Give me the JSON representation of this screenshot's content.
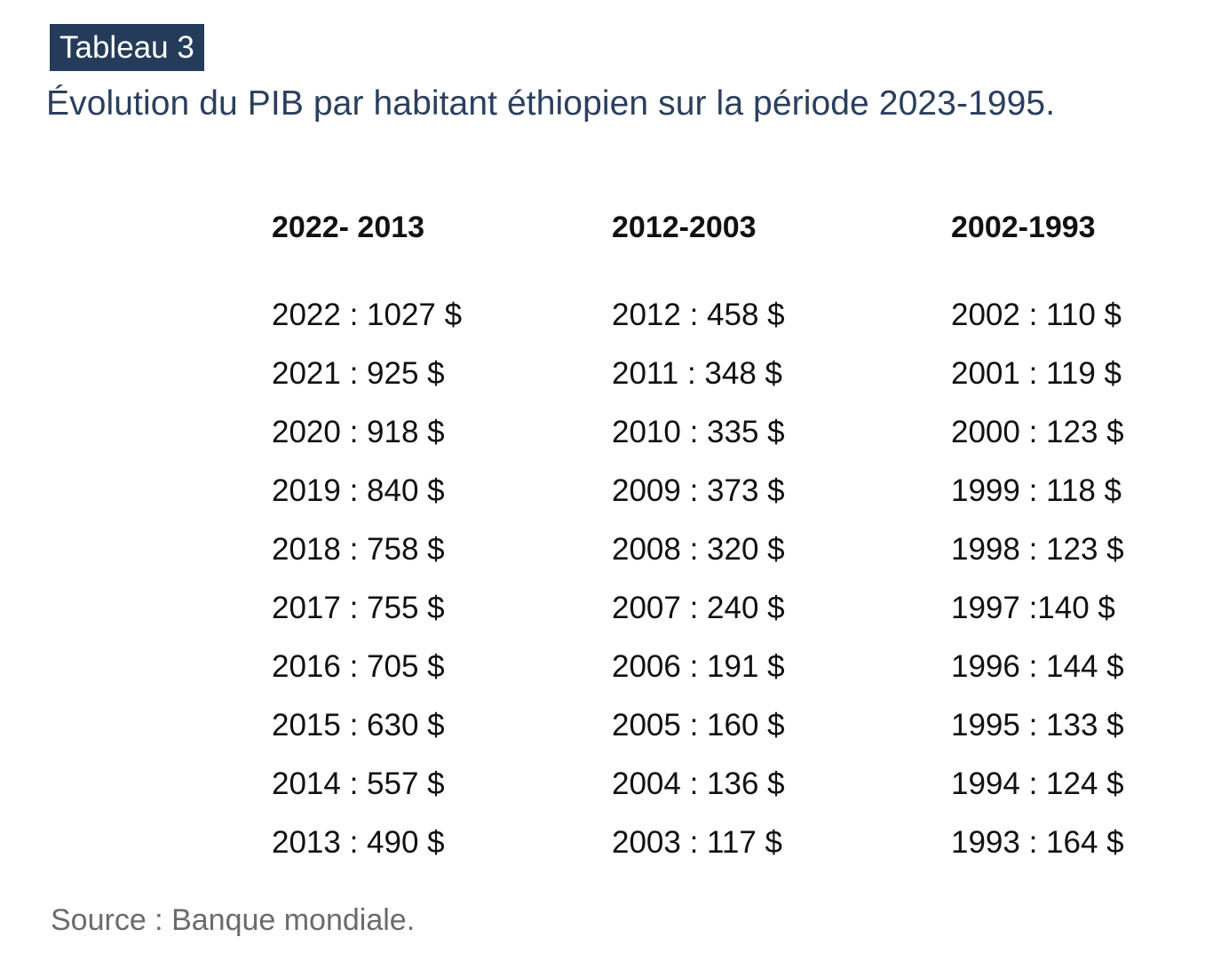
{
  "badge": "Tableau 3",
  "title": "Évolution du PIB par habitant éthiopien sur la période 2023-1995.",
  "columns": [
    {
      "header": "2022- 2013",
      "rows": [
        "2022 : 1027 $",
        "2021 : 925 $",
        "2020 : 918 $",
        "2019 : 840 $",
        "2018 : 758 $",
        "2017 : 755 $",
        "2016 : 705 $",
        "2015 : 630 $",
        "2014 : 557 $",
        "2013 : 490 $"
      ]
    },
    {
      "header": "2012-2003",
      "rows": [
        "2012 : 458 $",
        "2011 : 348 $",
        "2010 : 335 $",
        "2009 : 373 $",
        "2008 : 320 $",
        "2007 : 240 $",
        "2006 : 191 $",
        "2005 : 160 $",
        "2004 : 136 $",
        "2003 : 117 $"
      ]
    },
    {
      "header": "2002-1993",
      "rows": [
        "2002 : 110 $",
        "2001 : 119 $",
        "2000 : 123 $",
        "1999 : 118 $",
        "1998 : 123 $",
        "1997 :140 $",
        "1996 : 144 $",
        "1995 : 133 $",
        "1994 : 124 $",
        "1993 : 164 $"
      ]
    }
  ],
  "source": "Source : Banque mondiale.",
  "colors": {
    "badge_background": "#243b5a",
    "title_text": "#2b3f5d",
    "body_text": "#111111",
    "source_text": "#6b6b6b"
  }
}
